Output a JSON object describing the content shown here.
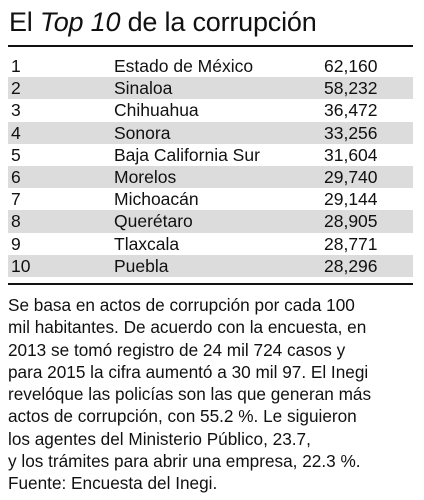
{
  "title": {
    "prefix": "El ",
    "emphasis": "Top 10",
    "suffix": " de la corrupción"
  },
  "table": {
    "rows": [
      {
        "rank": "1",
        "state": "Estado de México",
        "value": "62,160"
      },
      {
        "rank": "2",
        "state": "Sinaloa",
        "value": "58,232"
      },
      {
        "rank": "3",
        "state": "Chihuahua",
        "value": "36,472"
      },
      {
        "rank": "4",
        "state": "Sonora",
        "value": "33,256"
      },
      {
        "rank": "5",
        "state": "Baja California Sur",
        "value": "31,604"
      },
      {
        "rank": "6",
        "state": "Morelos",
        "value": "29,740"
      },
      {
        "rank": "7",
        "state": "Michoacán",
        "value": "29,144"
      },
      {
        "rank": "8",
        "state": "Querétaro",
        "value": "28,905"
      },
      {
        "rank": "9",
        "state": "Tlaxcala",
        "value": "28,771"
      },
      {
        "rank": "10",
        "state": "Puebla",
        "value": "28,296"
      }
    ],
    "stripe_color": "#dcdcdc"
  },
  "note": {
    "text": "Se basa en actos de corrupción por cada 100\nmil habitantes. De acuerdo con la encuesta, en\n2013 se tomó registro de 24 mil 724 casos y\npara 2015 la cifra aumentó a 30 mil 97. El Inegi\nrevelóque las policías son las que generan más\nactos de corrupción, con 55.2 %. Le siguieron\nlos agentes del Ministerio Público, 23.7,\ny los trámites para abrir una empresa, 22.3 %.\nFuente: Encuesta del Inegi."
  }
}
